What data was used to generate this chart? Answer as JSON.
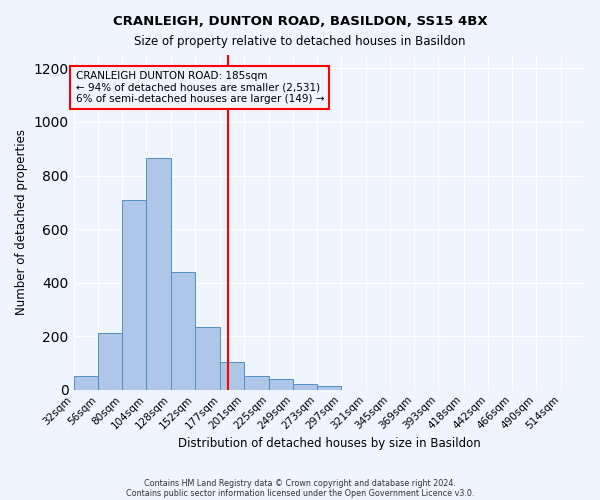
{
  "title": "CRANLEIGH, DUNTON ROAD, BASILDON, SS15 4BX",
  "subtitle": "Size of property relative to detached houses in Basildon",
  "xlabel": "Distribution of detached houses by size in Basildon",
  "ylabel": "Number of detached properties",
  "bar_color": "#aec6e8",
  "bar_edge_color": "#4f8fc0",
  "background_color": "#f0f4ff",
  "grid_color": "white",
  "bin_labels": [
    "32sqm",
    "56sqm",
    "80sqm",
    "104sqm",
    "128sqm",
    "152sqm",
    "177sqm",
    "201sqm",
    "225sqm",
    "249sqm",
    "273sqm",
    "297sqm",
    "321sqm",
    "345sqm",
    "369sqm",
    "393sqm",
    "418sqm",
    "442sqm",
    "466sqm",
    "490sqm",
    "514sqm"
  ],
  "bar_heights": [
    50,
    210,
    710,
    865,
    440,
    235,
    105,
    50,
    40,
    20,
    15,
    0,
    0,
    0,
    0,
    0,
    0,
    0,
    0,
    0,
    0
  ],
  "vline_x": 185,
  "ylim": [
    0,
    1250
  ],
  "yticks": [
    0,
    200,
    400,
    600,
    800,
    1000,
    1200
  ],
  "bin_edges_sqm": [
    32,
    56,
    80,
    104,
    128,
    152,
    177,
    201,
    225,
    249,
    273,
    297,
    321,
    345,
    369,
    393,
    418,
    442,
    466,
    490,
    514,
    538
  ],
  "annotation_title": "CRANLEIGH DUNTON ROAD: 185sqm",
  "annotation_line1": "← 94% of detached houses are smaller (2,531)",
  "annotation_line2": "6% of semi-detached houses are larger (149) →",
  "footer1": "Contains HM Land Registry data © Crown copyright and database right 2024.",
  "footer2": "Contains public sector information licensed under the Open Government Licence v3.0."
}
